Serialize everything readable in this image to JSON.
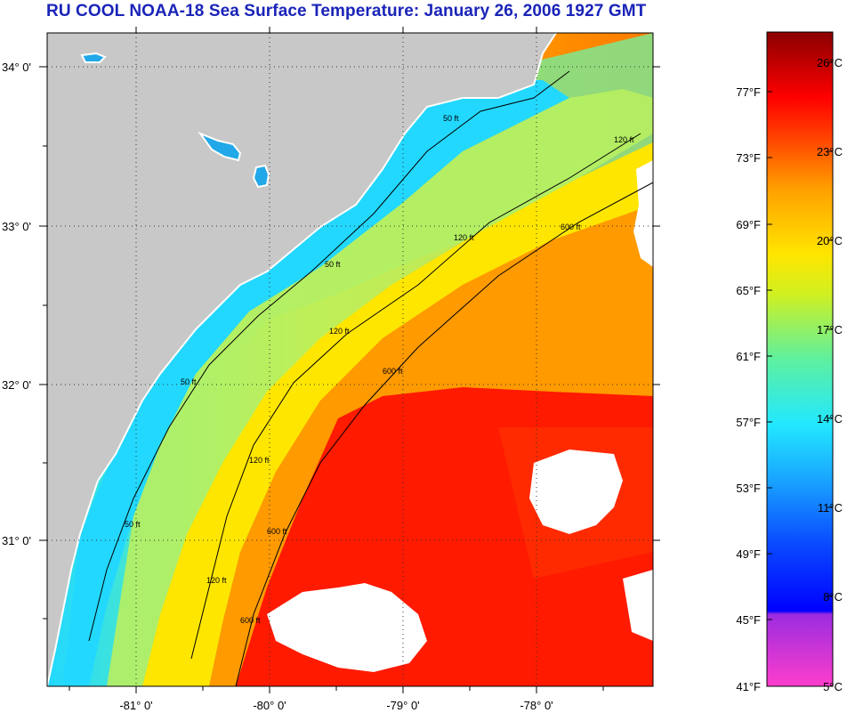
{
  "title": "RU COOL  NOAA-18  Sea Surface Temperature:  January 26, 2006 1927 GMT",
  "map": {
    "lat_labels": [
      "34° 0'",
      "33° 0'",
      "32° 0'",
      "31° 0'"
    ],
    "lon_labels": [
      "-81° 0'",
      "-80° 0'",
      "-79° 0'",
      "-78° 0'"
    ],
    "lat_values": [
      34,
      33,
      32,
      31
    ],
    "lon_values": [
      -81,
      -80,
      -79,
      -78
    ],
    "contour_labels": [
      "50 ft",
      "50 ft",
      "50 ft",
      "50 ft",
      "120 ft",
      "120 ft",
      "120 ft",
      "120 ft",
      "120 ft",
      "600 ft",
      "600 ft",
      "600 ft",
      "600 ft"
    ]
  },
  "colorbar": {
    "fahrenheit_labels": [
      "77°F",
      "73°F",
      "69°F",
      "65°F",
      "61°F",
      "57°F",
      "53°F",
      "49°F",
      "45°F",
      "41°F"
    ],
    "celsius_labels": [
      "26°C",
      "23°C",
      "20°C",
      "17°C",
      "14°C",
      "11°C",
      "8°C",
      "5°C"
    ]
  },
  "colors": {
    "title": "#1a24b8",
    "land": "#c8c8c8",
    "cloud": "#ffffff",
    "cold": "#0a4cff",
    "cyan": "#22d8ff",
    "green_yellow": "#a8ee40",
    "yellow": "#ffe600",
    "orange": "#ff9a00",
    "red": "#ff1a00",
    "dark_red": "#8a0000",
    "violet": "#9b2ce0",
    "pink": "#ff3dcc"
  }
}
